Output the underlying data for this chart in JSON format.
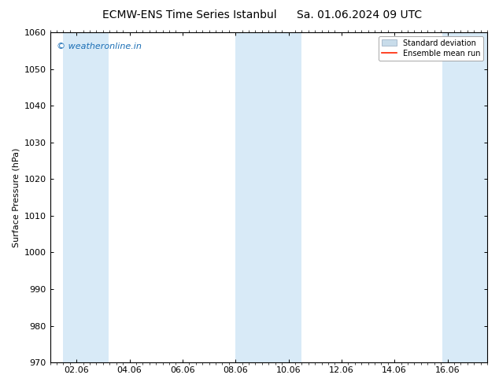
{
  "title_left": "ECMW-ENS Time Series Istanbul",
  "title_right": "Sa. 01.06.2024 09 UTC",
  "ylabel": "Surface Pressure (hPa)",
  "ylim": [
    970,
    1060
  ],
  "yticks": [
    970,
    980,
    990,
    1000,
    1010,
    1020,
    1030,
    1040,
    1050,
    1060
  ],
  "xlim": [
    0,
    16.5
  ],
  "xtick_labels": [
    "02.06",
    "04.06",
    "06.06",
    "08.06",
    "10.06",
    "12.06",
    "14.06",
    "16.06"
  ],
  "xtick_positions": [
    1,
    3,
    5,
    7,
    9,
    11,
    13,
    15
  ],
  "shaded_bands": [
    {
      "x_start": 0.5,
      "x_end": 2.2
    },
    {
      "x_start": 7.0,
      "x_end": 9.5
    },
    {
      "x_start": 14.8,
      "x_end": 16.5
    }
  ],
  "shade_color": "#d8eaf7",
  "background_color": "#ffffff",
  "watermark_text": "© weatheronline.in",
  "watermark_color": "#1a6eb5",
  "legend_std_color": "#c8dcea",
  "legend_std_edge": "#aabbcc",
  "legend_mean_color": "#ff2200",
  "title_fontsize": 10,
  "axis_label_fontsize": 8,
  "tick_fontsize": 8,
  "watermark_fontsize": 8
}
